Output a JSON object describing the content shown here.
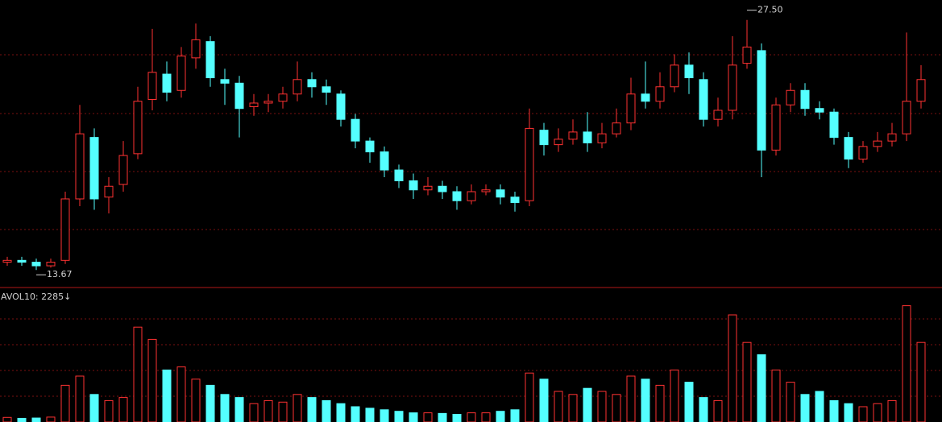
{
  "chart_data": [
    {
      "type": "candlestick",
      "up_color": "#ff3232",
      "down_color": "#54ffff",
      "open": [
        14.1,
        14.2,
        14.1,
        13.9,
        14.2,
        17.6,
        21.0,
        17.7,
        18.4,
        20.1,
        23.1,
        24.5,
        23.6,
        25.4,
        26.3,
        24.2,
        24.0,
        22.7,
        22.9,
        23.0,
        23.4,
        24.2,
        23.8,
        23.4,
        22.0,
        20.8,
        20.2,
        19.2,
        18.6,
        18.1,
        18.3,
        18.0,
        17.5,
        18.0,
        18.1,
        17.7,
        17.5,
        21.4,
        20.6,
        20.9,
        21.3,
        20.7,
        21.2,
        21.8,
        23.4,
        23.0,
        23.8,
        25.0,
        24.2,
        22.0,
        22.5,
        25.1,
        25.8,
        20.3,
        22.8,
        23.6,
        22.6,
        22.4,
        21.0,
        19.8,
        20.5,
        20.8,
        21.2,
        23.0
      ],
      "high": [
        14.4,
        14.4,
        14.3,
        14.3,
        18.0,
        22.8,
        21.5,
        18.8,
        20.8,
        23.8,
        27.0,
        25.2,
        26.0,
        27.3,
        26.6,
        24.8,
        24.4,
        23.4,
        23.4,
        23.8,
        25.2,
        24.6,
        24.2,
        23.6,
        22.3,
        21.0,
        20.5,
        19.5,
        19.0,
        18.8,
        18.6,
        18.3,
        18.4,
        18.4,
        18.4,
        18.0,
        22.6,
        21.8,
        21.5,
        22.0,
        22.4,
        21.8,
        22.6,
        24.3,
        25.2,
        24.6,
        25.6,
        25.7,
        24.6,
        23.2,
        26.6,
        27.5,
        26.2,
        23.2,
        24.0,
        24.0,
        23.0,
        22.6,
        21.3,
        20.8,
        21.3,
        21.8,
        26.8,
        25.0
      ],
      "low": [
        13.9,
        13.9,
        13.67,
        13.8,
        14.0,
        17.2,
        17.0,
        16.8,
        18.0,
        19.8,
        22.5,
        23.0,
        23.2,
        24.8,
        23.8,
        22.8,
        21.0,
        22.2,
        22.4,
        22.6,
        23.0,
        23.2,
        22.8,
        21.6,
        20.4,
        19.6,
        18.8,
        18.2,
        17.6,
        17.8,
        17.6,
        17.0,
        17.3,
        17.8,
        17.3,
        16.9,
        17.2,
        20.0,
        20.2,
        20.6,
        20.2,
        20.4,
        21.0,
        21.4,
        22.6,
        22.6,
        23.5,
        23.4,
        21.6,
        21.6,
        22.0,
        24.8,
        18.8,
        20.0,
        22.4,
        22.2,
        22.0,
        20.6,
        19.3,
        19.6,
        20.2,
        20.5,
        20.8,
        22.6
      ],
      "close": [
        14.2,
        14.1,
        13.9,
        14.1,
        17.6,
        21.2,
        17.6,
        18.3,
        20.0,
        23.0,
        24.6,
        23.5,
        25.5,
        26.4,
        24.3,
        24.0,
        22.6,
        22.9,
        23.0,
        23.4,
        24.2,
        23.8,
        23.5,
        22.0,
        20.8,
        20.2,
        19.2,
        18.6,
        18.1,
        18.3,
        18.0,
        17.5,
        18.0,
        18.1,
        17.7,
        17.4,
        21.5,
        20.6,
        20.9,
        21.3,
        20.7,
        21.2,
        21.8,
        23.4,
        23.0,
        23.8,
        25.0,
        24.3,
        22.0,
        22.5,
        25.0,
        26.0,
        20.3,
        22.8,
        23.6,
        22.6,
        22.4,
        21.0,
        19.8,
        20.5,
        20.8,
        21.2,
        23.0,
        24.2
      ],
      "ylim": [
        12.7,
        28.6
      ],
      "max_label": "27.50",
      "min_label": "13.67"
    },
    {
      "type": "bar",
      "title": "AVOL10: 2285↓",
      "values": [
        150,
        120,
        130,
        160,
        1200,
        1500,
        900,
        700,
        800,
        3100,
        2700,
        1700,
        1800,
        1400,
        1200,
        900,
        800,
        600,
        700,
        650,
        900,
        800,
        700,
        600,
        500,
        450,
        400,
        350,
        300,
        300,
        280,
        250,
        300,
        300,
        350,
        400,
        1600,
        1400,
        1000,
        900,
        1100,
        1000,
        900,
        1500,
        1400,
        1200,
        1700,
        1300,
        800,
        700,
        3500,
        2600,
        2200,
        1700,
        1300,
        900,
        1000,
        700,
        600,
        500,
        600,
        700,
        3800,
        2600
      ],
      "ylim": [
        0,
        4000
      ]
    }
  ]
}
